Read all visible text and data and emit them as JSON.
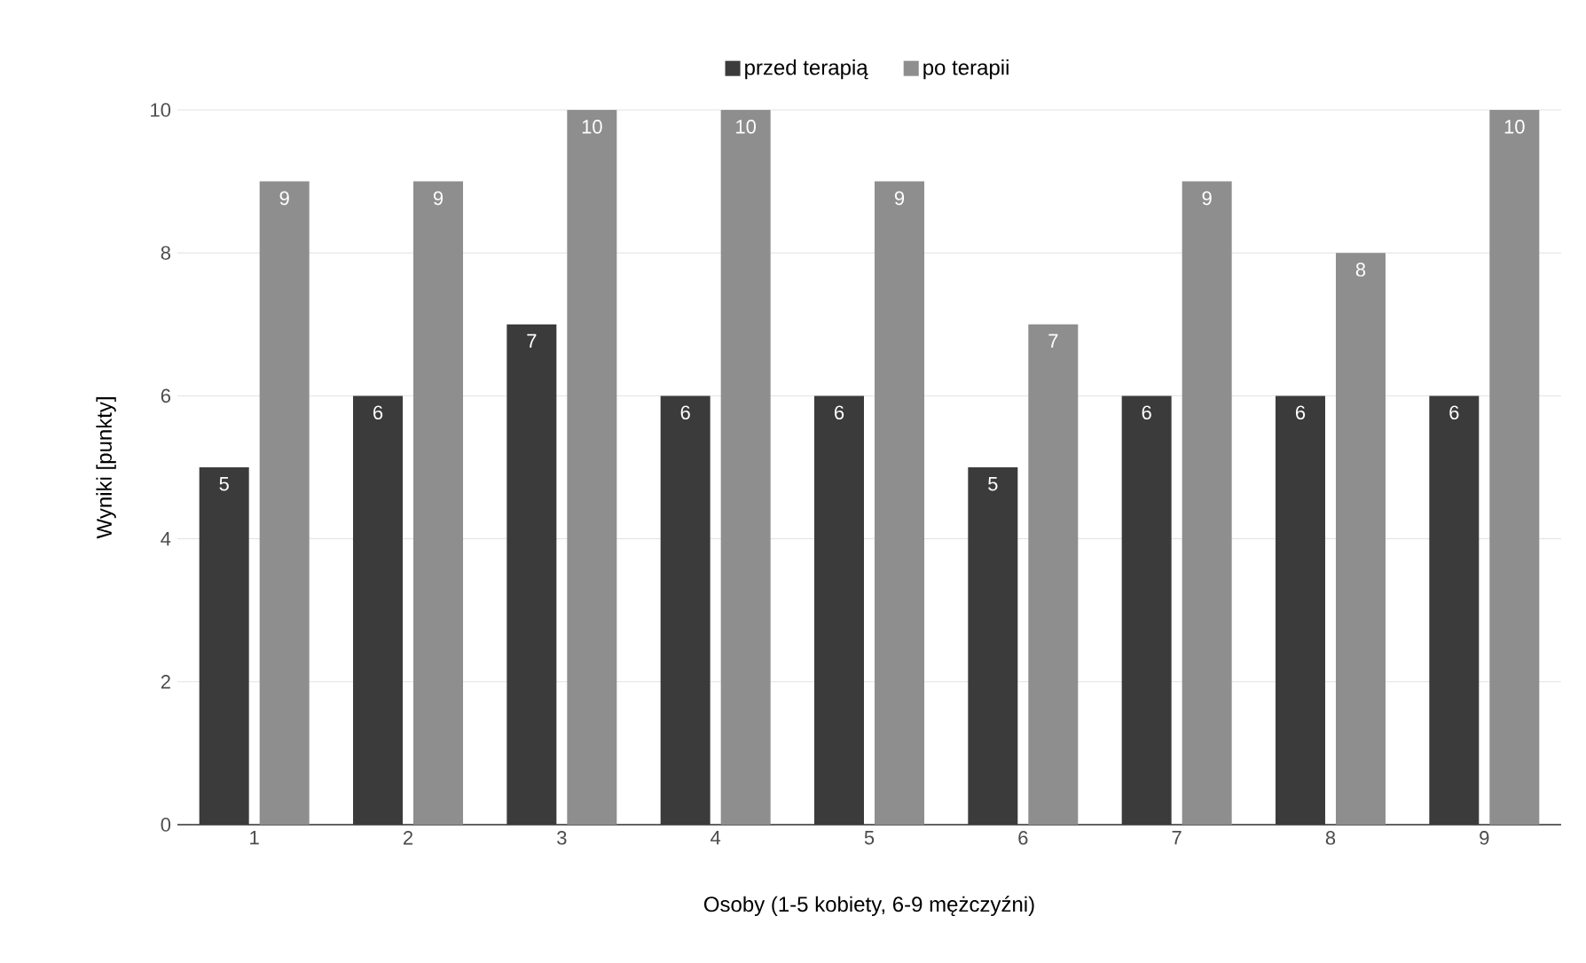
{
  "chart_data": {
    "type": "bar",
    "xlabel": "Osoby (1-5 kobiety, 6-9 mężczyźni)",
    "ylabel": "Wyniki [punkty]",
    "categories": [
      "1",
      "2",
      "3",
      "4",
      "5",
      "6",
      "7",
      "8",
      "9"
    ],
    "series": [
      {
        "name": "przed terapią",
        "color": "#3b3b3b",
        "values": [
          5,
          6,
          7,
          6,
          6,
          5,
          6,
          6,
          6
        ]
      },
      {
        "name": "po terapii",
        "color": "#8e8e8e",
        "values": [
          9,
          9,
          10,
          10,
          9,
          7,
          9,
          8,
          10
        ]
      }
    ],
    "ylim": [
      0,
      10
    ],
    "yticks": [
      0,
      2,
      4,
      6,
      8,
      10
    ],
    "grid": "y",
    "legend": "top",
    "data_labels": true
  }
}
